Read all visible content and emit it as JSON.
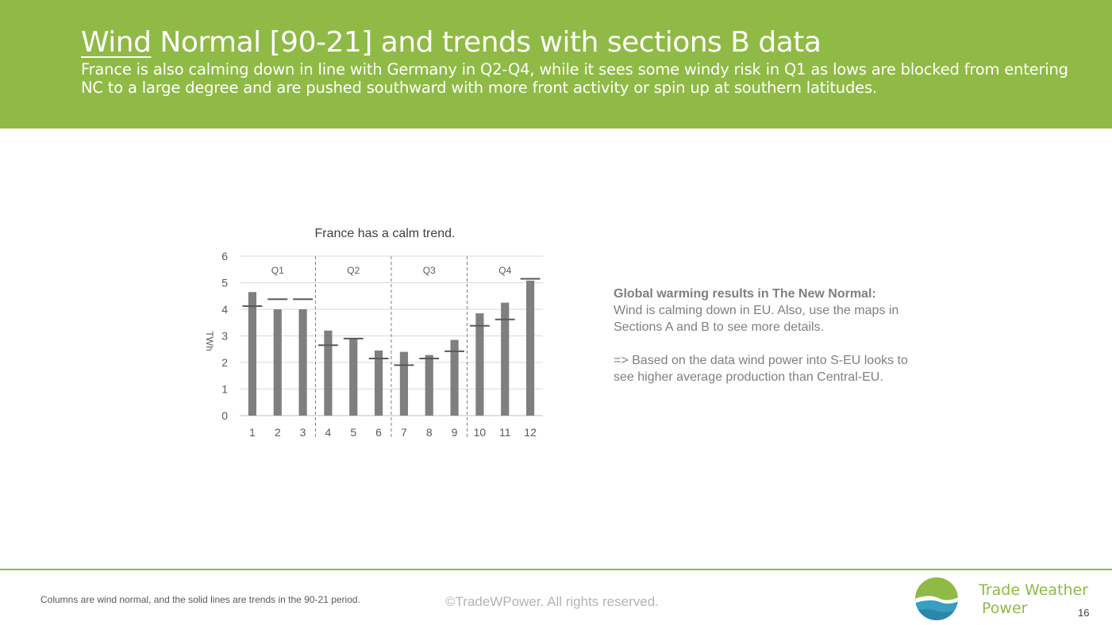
{
  "header": {
    "title_underlined": "Wind",
    "title_rest": " Normal [90-21] and trends with sections B data",
    "subtitle": "France is also calming down in line with Germany in Q2-Q4, while it sees some windy risk in Q1 as lows are blocked from entering NC to a large degree and are pushed southward with more front activity or spin up at southern latitudes."
  },
  "chart_data": {
    "type": "bar",
    "title": "France has a calm trend.",
    "ylabel": "TWh",
    "xlabel": "",
    "ylim": [
      0,
      6
    ],
    "yticks": [
      0,
      1,
      2,
      3,
      4,
      5,
      6
    ],
    "categories": [
      "1",
      "2",
      "3",
      "4",
      "5",
      "6",
      "7",
      "8",
      "9",
      "10",
      "11",
      "12"
    ],
    "series": [
      {
        "values": [
          4.65,
          4.0,
          4.0,
          3.2,
          2.9,
          2.45,
          2.4,
          2.28,
          2.85,
          3.85,
          4.25,
          5.08
        ]
      },
      {
        "values": [
          4.12,
          4.38,
          4.38,
          2.65,
          2.9,
          2.15,
          1.9,
          2.15,
          2.42,
          3.38,
          3.62,
          5.15
        ]
      }
    ],
    "quarters": [
      {
        "label": "Q1",
        "start": 0,
        "end": 2
      },
      {
        "label": "Q2",
        "start": 3,
        "end": 5
      },
      {
        "label": "Q3",
        "start": 6,
        "end": 8
      },
      {
        "label": "Q4",
        "start": 9,
        "end": 11
      }
    ],
    "grid": true,
    "legend": "none",
    "bar_color": "#7f7f7f",
    "trend_color": "#595959"
  },
  "side": {
    "heading": "Global warming results in The New Normal:",
    "line1": "Wind is calming down in EU. Also, use the maps in Sections A and B to see more details.",
    "line2": "=> Based on the data wind power into S-EU looks to see  higher average production than Central-EU."
  },
  "footer": {
    "note": "Columns are wind normal, and the solid lines are trends in the 90-21 period.",
    "copyright": "©TradeWPower. All rights reserved.",
    "brand_line1": "Trade Weather",
    "brand_line2": "Power",
    "page_number": "16"
  },
  "colors": {
    "accent": "#8fba45",
    "text_gray": "#7f7f7f"
  }
}
